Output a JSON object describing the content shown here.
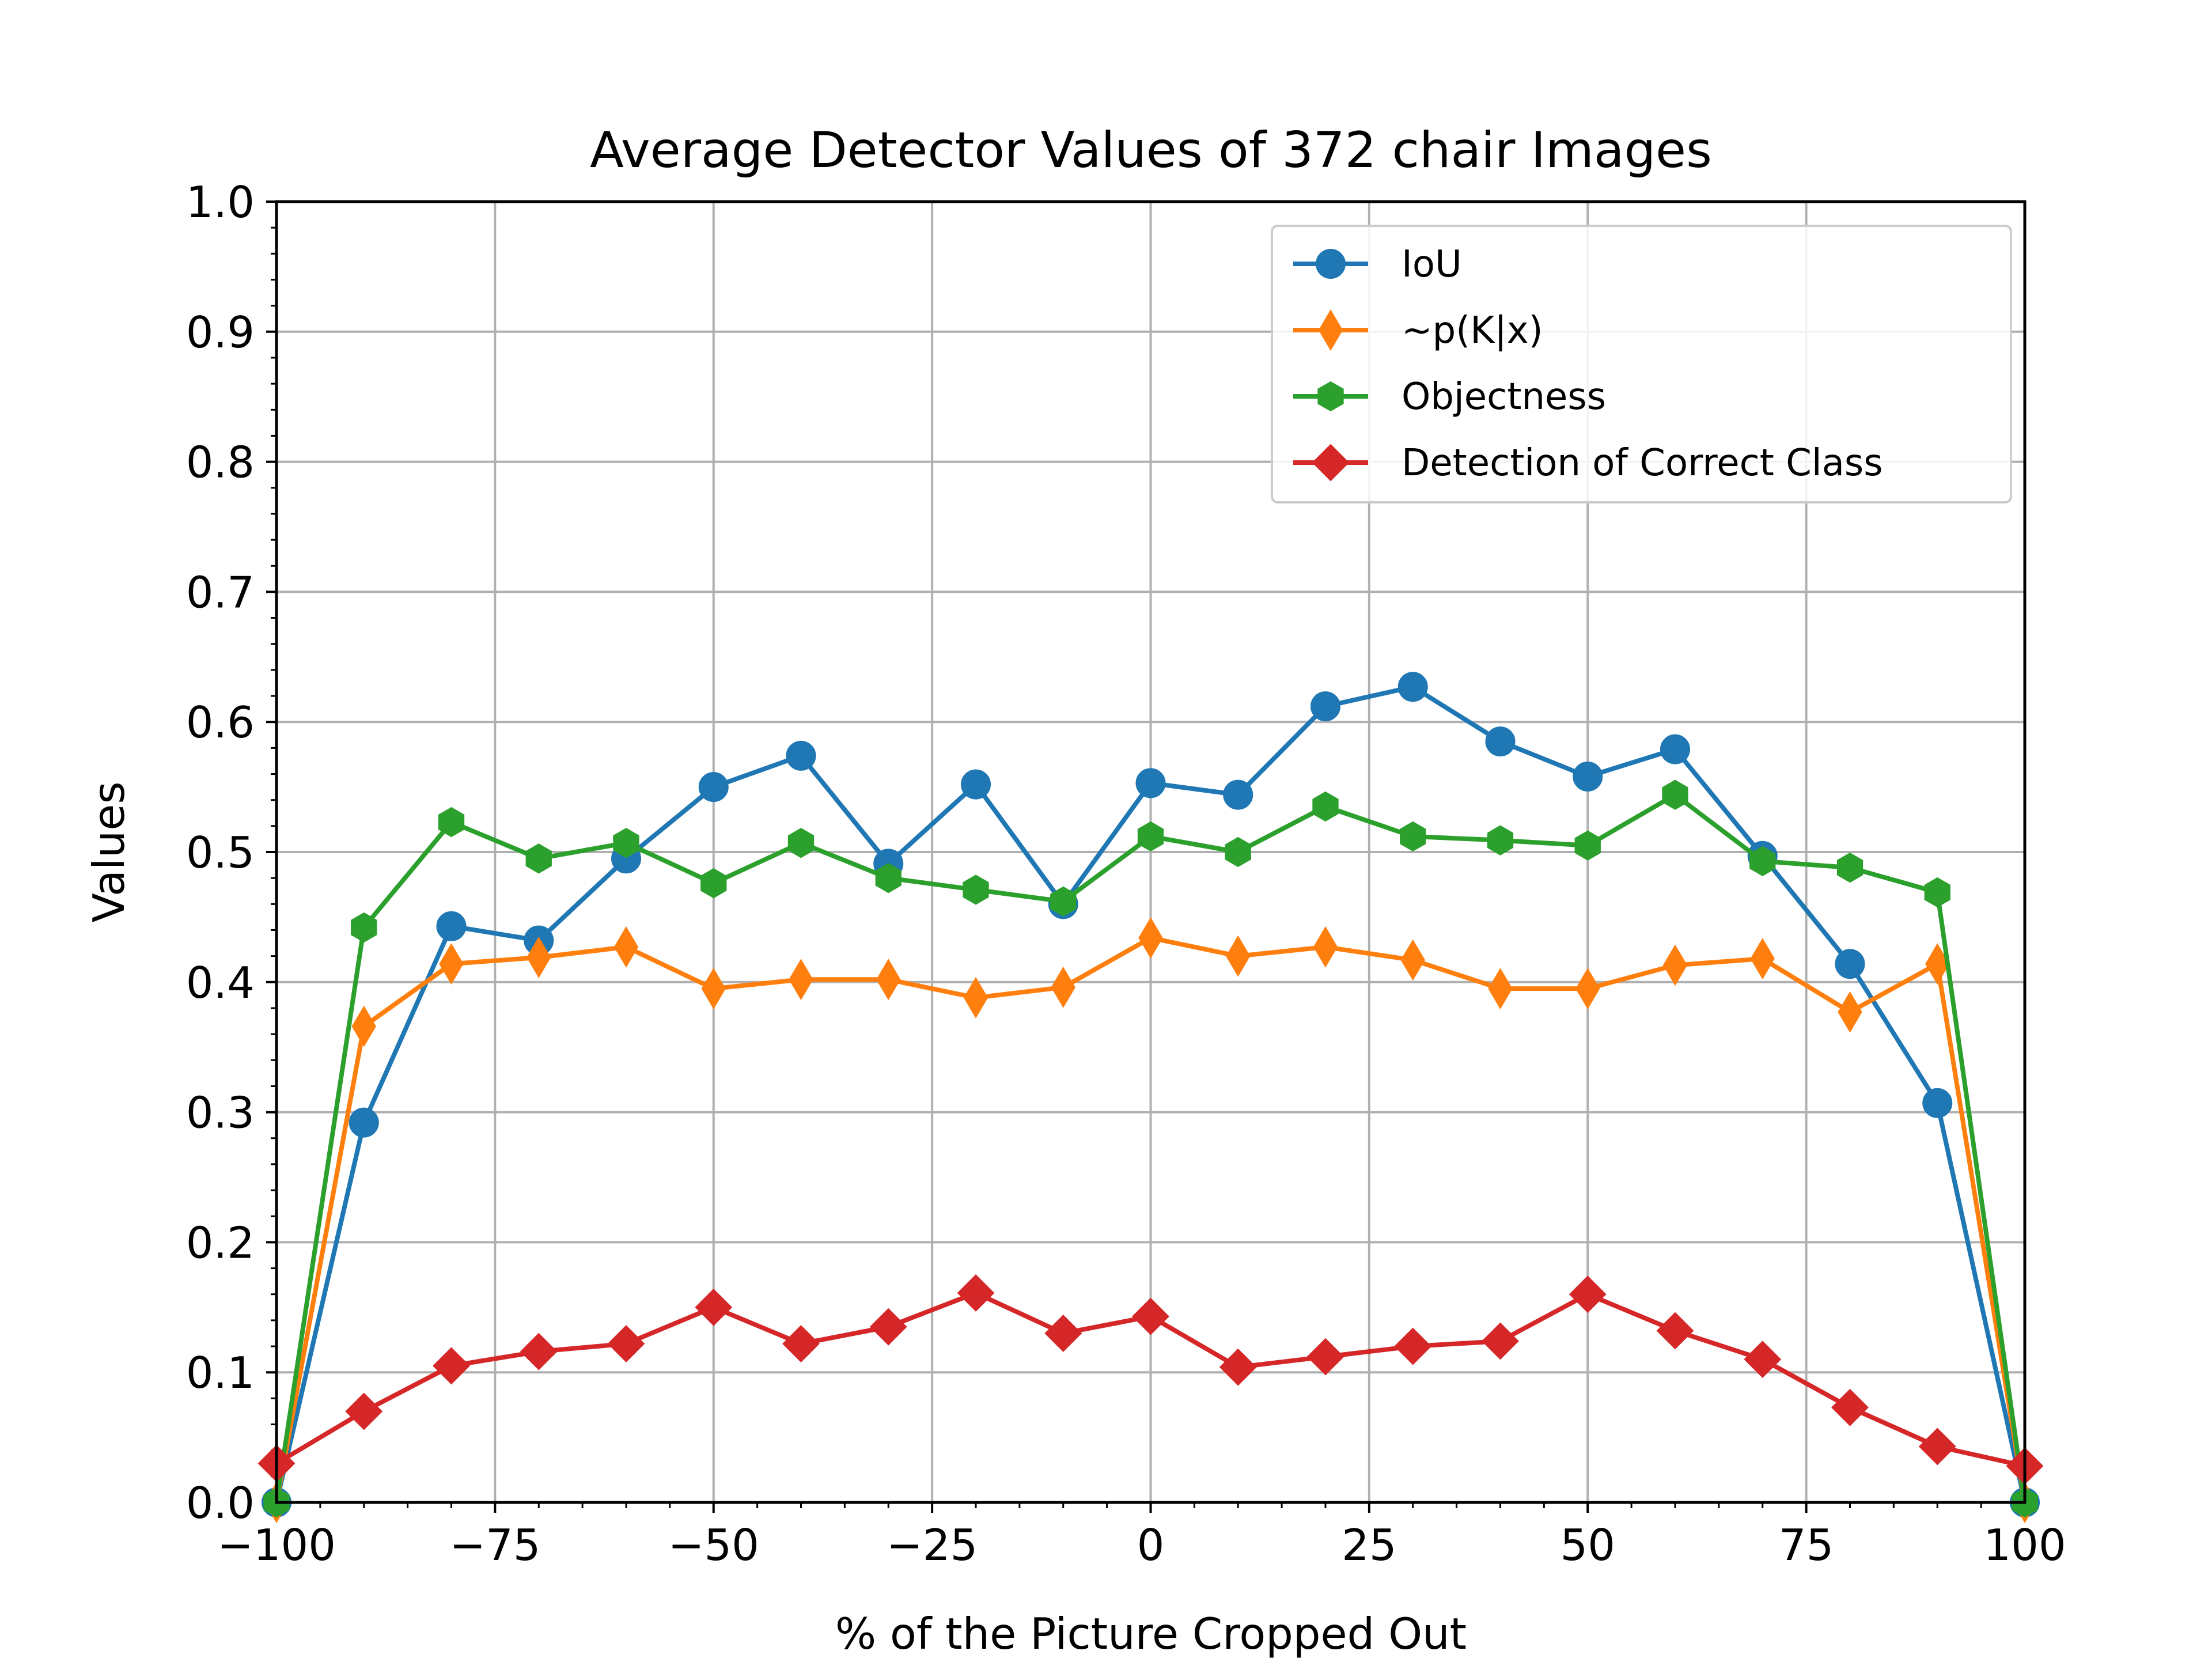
{
  "chart_data": {
    "type": "line",
    "title": "Average Detector Values of 372 chair Images",
    "xlabel": "% of the Picture Cropped Out",
    "ylabel": "Values",
    "xlim": [
      -100,
      100
    ],
    "ylim": [
      0.0,
      1.0
    ],
    "xticks": [
      "−100",
      "−75",
      "−50",
      "−25",
      "0",
      "25",
      "50",
      "75",
      "100"
    ],
    "yticks": [
      "0.0",
      "0.1",
      "0.2",
      "0.3",
      "0.4",
      "0.5",
      "0.6",
      "0.7",
      "0.8",
      "0.9",
      "1.0"
    ],
    "grid": true,
    "legend_position": "top-right",
    "x": [
      -100,
      -90,
      -80,
      -70,
      -60,
      -50,
      -40,
      -30,
      -20,
      -10,
      0,
      10,
      20,
      30,
      40,
      50,
      60,
      70,
      80,
      90,
      100
    ],
    "series": [
      {
        "name": "IoU",
        "color": "#1f77b4",
        "marker": "circle",
        "values": [
          0.0,
          0.292,
          0.443,
          0.432,
          0.495,
          0.55,
          0.574,
          0.491,
          0.552,
          0.46,
          0.553,
          0.544,
          0.612,
          0.627,
          0.585,
          0.558,
          0.579,
          0.497,
          0.414,
          0.307,
          0.0
        ]
      },
      {
        "name": "~p(K|x)",
        "color": "#ff7f0e",
        "marker": "thin-diamond",
        "values": [
          0.0,
          0.366,
          0.414,
          0.419,
          0.427,
          0.395,
          0.402,
          0.402,
          0.388,
          0.396,
          0.434,
          0.42,
          0.427,
          0.417,
          0.395,
          0.395,
          0.413,
          0.418,
          0.377,
          0.414,
          0.0
        ]
      },
      {
        "name": "Objectness",
        "color": "#2ca02c",
        "marker": "hexagon",
        "values": [
          0.0,
          0.442,
          0.523,
          0.495,
          0.507,
          0.476,
          0.507,
          0.48,
          0.471,
          0.462,
          0.512,
          0.5,
          0.535,
          0.512,
          0.509,
          0.505,
          0.544,
          0.493,
          0.488,
          0.469,
          0.0
        ]
      },
      {
        "name": "Detection of Correct Class",
        "color": "#d62728",
        "marker": "diamond",
        "values": [
          0.03,
          0.07,
          0.105,
          0.116,
          0.122,
          0.15,
          0.122,
          0.135,
          0.161,
          0.13,
          0.143,
          0.104,
          0.112,
          0.12,
          0.124,
          0.16,
          0.132,
          0.11,
          0.073,
          0.043,
          0.028
        ]
      }
    ]
  }
}
